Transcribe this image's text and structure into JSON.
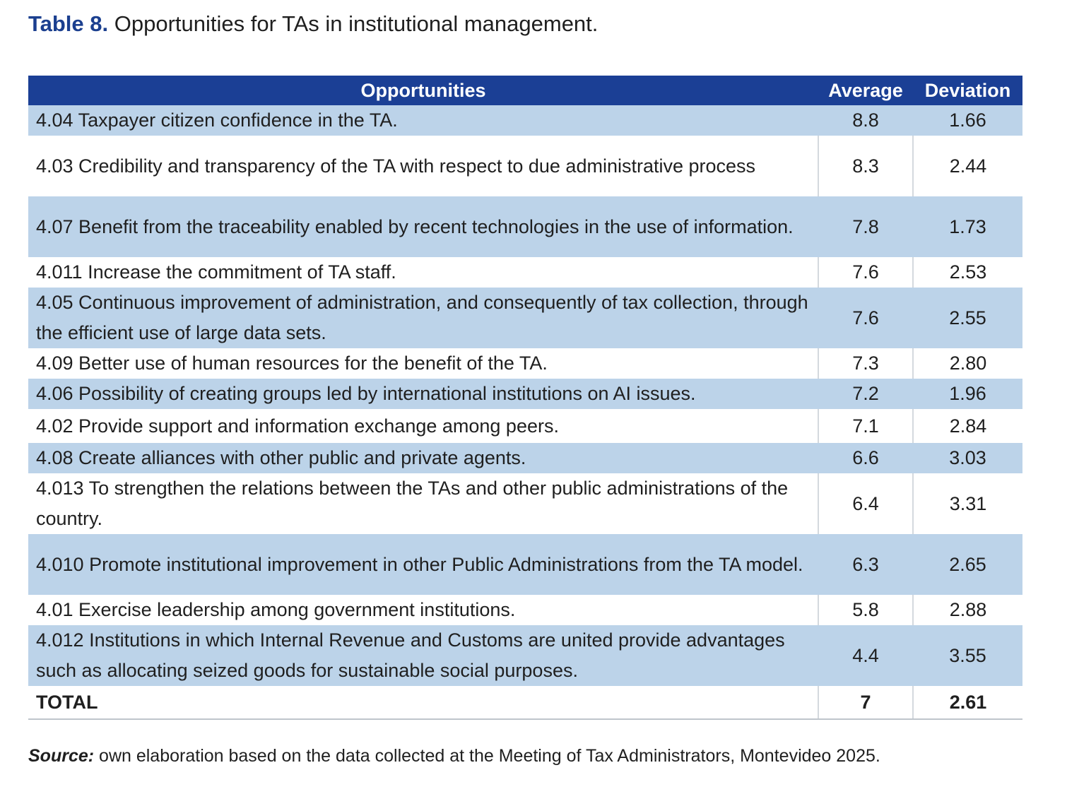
{
  "caption": {
    "label": "Table 8.",
    "text": " Opportunities for TAs in institutional management."
  },
  "table": {
    "headers": {
      "opportunities": "Opportunities",
      "average": "Average",
      "deviation": "Deviation"
    },
    "rows": [
      {
        "opportunity": "4.04 Taxpayer citizen confidence in the TA.",
        "average": "8.8",
        "deviation": "1.66"
      },
      {
        "opportunity": "4.03 Credibility and transparency of the TA with respect to due administrative process",
        "average": "8.3",
        "deviation": "2.44"
      },
      {
        "opportunity": "4.07 Benefit from the traceability enabled by recent technologies in the use of information.",
        "average": "7.8",
        "deviation": "1.73"
      },
      {
        "opportunity": "4.011 Increase the commitment of TA staff.",
        "average": "7.6",
        "deviation": "2.53"
      },
      {
        "opportunity": "4.05 Continuous improvement of administration, and consequently of tax collection, through the efficient use of large data sets.",
        "average": "7.6",
        "deviation": "2.55"
      },
      {
        "opportunity": "4.09 Better use of human resources for the benefit of the TA.",
        "average": "7.3",
        "deviation": "2.80"
      },
      {
        "opportunity": "4.06 Possibility of creating groups led by international institutions on AI issues.",
        "average": "7.2",
        "deviation": "1.96"
      },
      {
        "opportunity": "4.02 Provide support and information exchange among peers.",
        "average": "7.1",
        "deviation": "2.84"
      },
      {
        "opportunity": "4.08 Create alliances with other public and private agents.",
        "average": "6.6",
        "deviation": "3.03"
      },
      {
        "opportunity": "4.013 To strengthen the relations between the TAs and other public administrations of the country.",
        "average": "6.4",
        "deviation": "3.31"
      },
      {
        "opportunity": "4.010 Promote institutional improvement in other Public Administrations from the TA model.",
        "average": "6.3",
        "deviation": "2.65"
      },
      {
        "opportunity": "4.01 Exercise leadership among government institutions.",
        "average": "5.8",
        "deviation": "2.88"
      },
      {
        "opportunity": "4.012 Institutions in which Internal Revenue and Customs are united provide advantages such as allocating seized goods for sustainable social purposes.",
        "average": "4.4",
        "deviation": "3.55"
      }
    ],
    "total": {
      "label": "TOTAL",
      "average": "7",
      "deviation": "2.61"
    }
  },
  "source": {
    "label": "Source:",
    "text": " own elaboration based on the data collected at the Meeting of Tax Administrators, Montevideo 2025."
  },
  "colors": {
    "header_bg": "#1b3f95",
    "band_bg": "#bcd3e9",
    "caption_label": "#1b3f8f"
  }
}
